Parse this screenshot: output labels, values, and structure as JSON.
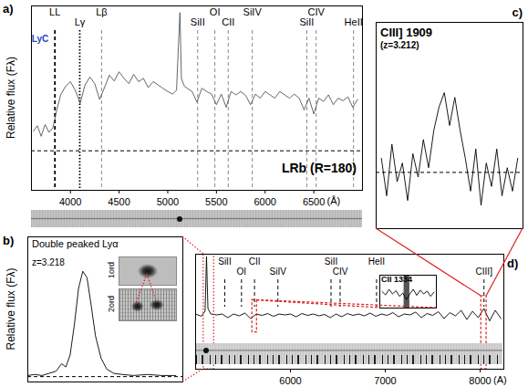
{
  "chart_data": [
    {
      "type": "line",
      "panel_label": "a)",
      "ylabel": "Relative flux (Fλ)",
      "xlabel": "(Å)",
      "color": "#555555",
      "x": [
        3620,
        3660,
        3700,
        3740,
        3780,
        3820,
        3860,
        3900,
        3950,
        4000,
        4050,
        4100,
        4150,
        4200,
        4250,
        4300,
        4350,
        4400,
        4450,
        4500,
        4550,
        4600,
        4650,
        4700,
        4750,
        4800,
        4850,
        4900,
        4950,
        5000,
        5050,
        5090,
        5110,
        5125,
        5140,
        5170,
        5200,
        5250,
        5300,
        5350,
        5400,
        5450,
        5500,
        5550,
        5600,
        5650,
        5700,
        5750,
        5800,
        5850,
        5900,
        5950,
        6000,
        6050,
        6100,
        6150,
        6200,
        6250,
        6300,
        6350,
        6400,
        6450,
        6500,
        6550,
        6600,
        6650,
        6700,
        6750,
        6800,
        6850,
        6900,
        6950
      ],
      "values": [
        0.3,
        0.38,
        0.22,
        0.4,
        0.28,
        0.35,
        0.62,
        0.85,
        0.98,
        1.05,
        0.92,
        0.72,
        1.0,
        1.12,
        1.02,
        0.78,
        0.96,
        1.15,
        1.06,
        1.2,
        1.1,
        1.02,
        1.16,
        1.05,
        1.1,
        0.96,
        1.05,
        1.0,
        0.95,
        0.9,
        0.86,
        0.92,
        1.6,
        2.1,
        1.1,
        0.98,
        0.95,
        0.9,
        0.74,
        0.95,
        0.9,
        0.86,
        0.7,
        0.86,
        0.66,
        0.9,
        0.85,
        0.9,
        0.84,
        0.7,
        0.86,
        0.8,
        0.9,
        0.85,
        0.8,
        0.9,
        0.85,
        0.8,
        0.86,
        0.8,
        0.62,
        0.8,
        0.56,
        0.8,
        0.75,
        0.85,
        0.7,
        0.8,
        0.76,
        0.82,
        0.66,
        0.78
      ],
      "xlim": [
        3600,
        7000
      ],
      "xticks": [
        4000,
        4500,
        5000,
        5500,
        6000,
        6500
      ],
      "ylim": [
        -0.6,
        2.2
      ],
      "tick_labels": "x",
      "lines": [
        {
          "label": "LL",
          "x": 3841,
          "line_style": "dashed",
          "color": "#000000"
        },
        {
          "label": "Lγ",
          "x": 4096,
          "line_style": "dotted",
          "color": "#000000"
        },
        {
          "label": "Lβ",
          "x": 4320,
          "line_style": "dashed",
          "color": "#888888"
        },
        {
          "label": "SiII",
          "x": 5307,
          "line_style": "dashed",
          "color": "#888888"
        },
        {
          "label": "OI",
          "x": 5484,
          "line_style": "dashed",
          "color": "#888888"
        },
        {
          "label": "CII",
          "x": 5621,
          "line_style": "dashed",
          "color": "#888888"
        },
        {
          "label": "SiIV",
          "x": 5868,
          "line_style": "dashed",
          "color": "#888888"
        },
        {
          "label": "SiII",
          "x": 6428,
          "line_style": "dashed",
          "color": "#888888"
        },
        {
          "label": "CIV",
          "x": 6524,
          "line_style": "dashed",
          "color": "#888888"
        },
        {
          "label": "HeII",
          "x": 6908,
          "line_style": "dashed",
          "color": "#888888"
        }
      ],
      "hlines": [
        {
          "y": 0,
          "line_style": "dashed"
        }
      ],
      "annotations": [
        {
          "text": "LyC",
          "color": "#2a44c8"
        },
        {
          "text": "LRb (R=180)",
          "color": "#000000"
        }
      ]
    },
    {
      "type": "line",
      "panel_label": "b)",
      "title": "Double peaked Lyα",
      "ylabel": "Relative flux (Fλ)",
      "color": "#000000",
      "x": [
        5085,
        5090,
        5095,
        5100,
        5105,
        5109,
        5112,
        5115,
        5118,
        5121,
        5124,
        5127,
        5130,
        5133,
        5137,
        5141,
        5146,
        5152,
        5160,
        5170,
        5180,
        5190
      ],
      "values": [
        0.01,
        0.02,
        0.01,
        0.03,
        0.05,
        0.12,
        0.09,
        0.2,
        0.48,
        0.82,
        0.98,
        0.92,
        0.66,
        0.38,
        0.17,
        0.07,
        0.03,
        0.02,
        0.01,
        0.02,
        0.01,
        0.01
      ],
      "xlim": [
        5085,
        5195
      ],
      "ylim": [
        -0.05,
        1.3
      ],
      "tick_labels": false,
      "hlines": [
        {
          "y": 0,
          "line_style": "dashed"
        }
      ],
      "annotations": [
        {
          "text": "z=3.218",
          "color": "#000000"
        }
      ],
      "insets": [
        "1ord",
        "2ord"
      ]
    },
    {
      "type": "line",
      "panel_label": "c)",
      "title": "CIII] 1909",
      "subtitle": "(z=3.212)",
      "color": "#000000",
      "x": [
        8014,
        8016,
        8018,
        8020,
        8022,
        8024,
        8026,
        8028,
        8030,
        8032,
        8034,
        8036,
        8038,
        8040,
        8042,
        8044,
        8046,
        8048,
        8050,
        8052,
        8054,
        8056,
        8058,
        8060,
        8062,
        8064,
        8066
      ],
      "values": [
        0.3,
        -0.5,
        0.6,
        -0.2,
        0.2,
        -0.6,
        0.4,
        -0.1,
        0.7,
        0.1,
        0.9,
        1.4,
        1.7,
        1.0,
        1.6,
        0.9,
        0.3,
        -0.4,
        0.5,
        -0.7,
        0.2,
        -0.3,
        0.5,
        -0.5,
        0.1,
        -0.4,
        0.3
      ],
      "xlim": [
        8012,
        8068
      ],
      "ylim": [
        -1.2,
        3.2
      ],
      "tick_labels": false,
      "hlines": [
        {
          "y": 0,
          "line_style": "dashed"
        }
      ]
    },
    {
      "type": "line",
      "panel_label": "d)",
      "xlabel": "(A)",
      "color": "#000000",
      "x": [
        5000,
        5060,
        5100,
        5115,
        5130,
        5160,
        5220,
        5280,
        5340,
        5400,
        5460,
        5520,
        5580,
        5640,
        5700,
        5760,
        5820,
        5880,
        5940,
        6000,
        6060,
        6120,
        6180,
        6240,
        6300,
        6360,
        6420,
        6480,
        6540,
        6600,
        6660,
        6720,
        6780,
        6840,
        6900,
        6960,
        7020,
        7080,
        7140,
        7200,
        7260,
        7320,
        7380,
        7440,
        7500,
        7560,
        7620,
        7680,
        7740,
        7800,
        7860,
        7920,
        7980,
        8040,
        8100,
        8160,
        8220
      ],
      "values": [
        0.3,
        0.25,
        0.36,
        1.55,
        0.42,
        0.3,
        0.28,
        0.3,
        0.22,
        0.3,
        0.26,
        0.32,
        0.2,
        0.3,
        0.27,
        0.31,
        0.25,
        0.3,
        0.28,
        0.3,
        0.24,
        0.31,
        0.27,
        0.3,
        0.26,
        0.29,
        0.22,
        0.3,
        0.24,
        0.31,
        0.27,
        0.3,
        0.26,
        0.32,
        0.25,
        0.3,
        0.27,
        0.33,
        0.24,
        0.3,
        0.28,
        0.34,
        0.22,
        0.31,
        0.27,
        0.35,
        0.2,
        0.33,
        0.26,
        0.38,
        0.18,
        0.36,
        0.22,
        0.42,
        0.15,
        0.38,
        0.2
      ],
      "xlim": [
        5000,
        8250
      ],
      "xticks": [
        6000,
        7000,
        8000
      ],
      "ylim": [
        -0.9,
        1.6
      ],
      "tick_labels": "x",
      "lines": [
        {
          "label": "SiII",
          "x": 5307,
          "line_style": "dashed",
          "color": "#000000"
        },
        {
          "label": "OI",
          "x": 5484,
          "line_style": "dashed",
          "color": "#000000"
        },
        {
          "label": "CII",
          "x": 5621,
          "line_style": "dashed",
          "color": "#000000"
        },
        {
          "label": "SiIV",
          "x": 5868,
          "line_style": "dashed",
          "color": "#000000"
        },
        {
          "label": "SiII",
          "x": 6428,
          "line_style": "dashed",
          "color": "#000000"
        },
        {
          "label": "CIV",
          "x": 6524,
          "line_style": "dashed",
          "color": "#000000"
        },
        {
          "label": "HeII",
          "x": 6908,
          "line_style": "dashed",
          "color": "#000000"
        },
        {
          "label": "CIII]",
          "x": 8041,
          "line_style": "dashed",
          "color": "#000000"
        }
      ]
    },
    {
      "type": "line",
      "title": "CII 1334",
      "color": "#000000",
      "x": [
        5600,
        5603,
        5606,
        5609,
        5612,
        5615,
        5618,
        5621,
        5624,
        5627,
        5630,
        5633,
        5636,
        5639,
        5642,
        5645
      ],
      "values": [
        0.25,
        0.18,
        0.3,
        0.2,
        0.27,
        0.15,
        0.22,
        0.08,
        0.2,
        0.3,
        0.17,
        0.28,
        0.2,
        0.26,
        0.15,
        0.24
      ],
      "xlim": [
        5598,
        5647
      ],
      "ylim": [
        -0.1,
        0.6
      ],
      "tick_labels": false,
      "masked": [
        5619,
        5624
      ]
    }
  ]
}
